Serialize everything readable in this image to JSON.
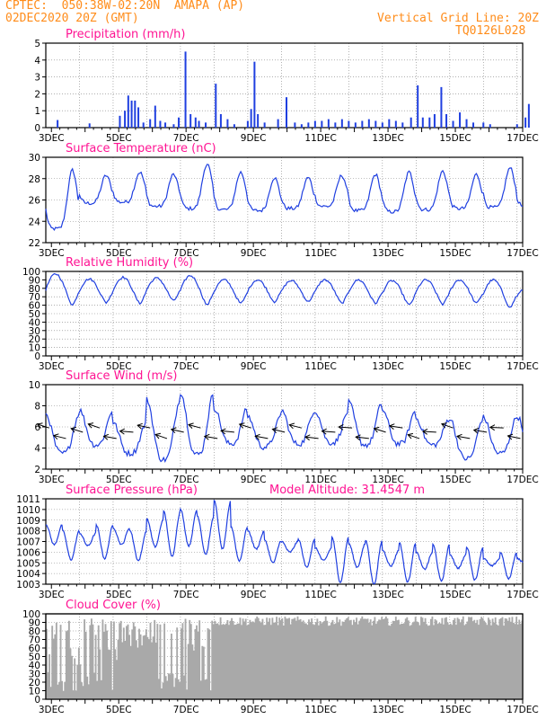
{
  "header": {
    "location": "CPTEC:  050:38W-02:20N  AMAPA (AP)",
    "issued": "02DEC2020 20Z (GMT)",
    "grid_note": "Vertical Grid Line: 20Z",
    "model_id": "TQ0126L028",
    "model_altitude": "Model Altitude: 31.4547 m"
  },
  "colors": {
    "header": "#ff8c1a",
    "panel_title": "#ff1493",
    "series": "#1f3fe0",
    "cloud": "#a9a9a9",
    "wind_arrow": "#000000",
    "grid": "#808080"
  },
  "x_axis": {
    "start_day": 2,
    "start_hour": 20,
    "end_day": 17,
    "end_hour": 0,
    "tick_labels": [
      "3DEC",
      "5DEC",
      "7DEC",
      "9DEC",
      "11DEC",
      "13DEC",
      "15DEC",
      "17DEC"
    ],
    "tick_days": [
      3,
      5,
      7,
      9,
      11,
      13,
      15,
      17
    ],
    "vertical_grid": "20Z daily"
  },
  "chart_data": [
    {
      "type": "bar",
      "title": "Precipitation (mm/h)",
      "ylim": [
        0,
        5
      ],
      "yticks": [
        0,
        1,
        2,
        3,
        4,
        5
      ],
      "note": "hourly precipitation; peaks read from plot",
      "x_unit": "days since 02DEC2020 20Z",
      "points": [
        [
          0.35,
          0.45
        ],
        [
          1.3,
          0.25
        ],
        [
          2.2,
          0.7
        ],
        [
          2.35,
          1.0
        ],
        [
          2.45,
          1.9
        ],
        [
          2.55,
          1.6
        ],
        [
          2.65,
          1.6
        ],
        [
          2.75,
          1.2
        ],
        [
          2.9,
          0.3
        ],
        [
          3.1,
          0.5
        ],
        [
          3.25,
          1.3
        ],
        [
          3.4,
          0.4
        ],
        [
          3.55,
          0.3
        ],
        [
          3.8,
          0.2
        ],
        [
          3.95,
          0.6
        ],
        [
          4.15,
          4.5
        ],
        [
          4.3,
          0.8
        ],
        [
          4.45,
          0.6
        ],
        [
          4.55,
          0.4
        ],
        [
          4.75,
          0.3
        ],
        [
          5.05,
          2.6
        ],
        [
          5.2,
          0.8
        ],
        [
          5.4,
          0.5
        ],
        [
          5.6,
          0.2
        ],
        [
          6.0,
          0.4
        ],
        [
          6.1,
          1.1
        ],
        [
          6.2,
          3.9
        ],
        [
          6.3,
          0.8
        ],
        [
          6.5,
          0.3
        ],
        [
          6.9,
          0.5
        ],
        [
          7.15,
          1.8
        ],
        [
          7.4,
          0.3
        ],
        [
          7.6,
          0.2
        ],
        [
          7.8,
          0.3
        ],
        [
          8.0,
          0.4
        ],
        [
          8.2,
          0.4
        ],
        [
          8.4,
          0.5
        ],
        [
          8.6,
          0.3
        ],
        [
          8.8,
          0.5
        ],
        [
          9.0,
          0.4
        ],
        [
          9.2,
          0.3
        ],
        [
          9.4,
          0.4
        ],
        [
          9.6,
          0.5
        ],
        [
          9.8,
          0.4
        ],
        [
          10.0,
          0.3
        ],
        [
          10.2,
          0.5
        ],
        [
          10.4,
          0.4
        ],
        [
          10.6,
          0.3
        ],
        [
          10.85,
          0.6
        ],
        [
          11.05,
          2.5
        ],
        [
          11.2,
          0.6
        ],
        [
          11.4,
          0.6
        ],
        [
          11.55,
          0.8
        ],
        [
          11.75,
          2.4
        ],
        [
          11.9,
          0.8
        ],
        [
          12.1,
          0.4
        ],
        [
          12.3,
          0.9
        ],
        [
          12.5,
          0.5
        ],
        [
          12.7,
          0.3
        ],
        [
          13.0,
          0.3
        ],
        [
          13.2,
          0.2
        ],
        [
          14.0,
          0.2
        ],
        [
          14.25,
          0.6
        ],
        [
          14.35,
          1.4
        ]
      ]
    },
    {
      "type": "line",
      "title": "Surface Temperature (nC)",
      "ylim": [
        22,
        30
      ],
      "yticks": [
        22,
        24,
        26,
        28,
        30
      ],
      "series": [
        {
          "name": "",
          "diurnal": {
            "min": [
              23.3,
              25.7,
              25.8,
              25.4,
              25.2,
              25.1,
              25.0,
              25.2,
              25.4,
              25.0,
              24.9,
              25.1,
              25.2,
              25.3,
              25.4
            ],
            "max": [
              28.8,
              28.3,
              28.6,
              28.4,
              29.4,
              28.6,
              28.1,
              28.1,
              28.3,
              28.4,
              28.6,
              28.7,
              28.4,
              29.0,
              27.7
            ]
          }
        }
      ]
    },
    {
      "type": "line",
      "title": "Relative Humidity (%)",
      "ylim": [
        0,
        100
      ],
      "yticks": [
        0,
        10,
        20,
        30,
        40,
        50,
        60,
        70,
        80,
        90,
        100
      ],
      "series": [
        {
          "name": "",
          "diurnal": {
            "min": [
              60,
              63,
              62,
              65,
              60,
              62,
              64,
              64,
              62,
              62,
              60,
              61,
              62,
              57,
              62
            ],
            "max": [
              97,
              91,
              93,
              92,
              95,
              90,
              90,
              89,
              90,
              90,
              89,
              90,
              90,
              90,
              80
            ]
          }
        }
      ]
    },
    {
      "type": "line",
      "title": "Surface Wind (m/s)",
      "ylim": [
        2,
        10
      ],
      "yticks": [
        2,
        4,
        6,
        8,
        10
      ],
      "series": [
        {
          "name": "",
          "diurnal": {
            "min": [
              3.5,
              4.3,
              3.5,
              2.9,
              3.4,
              4.4,
              4.1,
              4.4,
              4.5,
              4.3,
              4.4,
              4.3,
              3.0,
              3.5,
              3.7
            ],
            "max": [
              7.2,
              7.6,
              6.4,
              8.6,
              9.3,
              7.8,
              7.0,
              7.6,
              7.5,
              8.3,
              7.6,
              6.8,
              6.8,
              6.9,
              7.0
            ]
          }
        }
      ],
      "arrows": "wind direction vectors every ~12h, mostly from northeast"
    },
    {
      "type": "line",
      "title": "Surface Pressure (hPa)",
      "ylim": [
        1003,
        1011
      ],
      "yticks": [
        1003,
        1004,
        1005,
        1006,
        1007,
        1008,
        1009,
        1010,
        1011
      ],
      "series": [
        {
          "name": "",
          "semidiurnal_peaks": [
            1008.6,
            1008.0,
            1007.8,
            1008.5,
            1008.3,
            1008.0,
            1009.1,
            1009.8,
            1010.0,
            1009.4,
            1010.8,
            1008.4,
            1008.0,
            1007.1,
            1007.0,
            1007.2,
            1006.4,
            1007.4,
            1006.8,
            1007.1,
            1006.2,
            1006.9,
            1006.0,
            1006.7,
            1005.8,
            1006.5,
            1005.4,
            1006.0,
            1005.4
          ],
          "semidiurnal_troughs": [
            1006.7,
            1005.3,
            1006.6,
            1005.4,
            1006.7,
            1005.2,
            1006.5,
            1005.6,
            1006.6,
            1005.8,
            1006.3,
            1005.2,
            1006.3,
            1005.0,
            1006.0,
            1004.6,
            1005.2,
            1003.2,
            1004.6,
            1003.0,
            1004.7,
            1003.2,
            1004.4,
            1003.3,
            1004.5,
            1003.4,
            1004.7,
            1003.5,
            1004.9
          ]
        }
      ]
    },
    {
      "type": "area",
      "title": "Cloud Cover (%)",
      "ylim": [
        0,
        100
      ],
      "yticks": [
        0,
        10,
        20,
        30,
        40,
        50,
        60,
        70,
        80,
        90,
        100
      ],
      "note": "high variability (5-95%) through 7DEC, then persistently 88-97%"
    }
  ]
}
